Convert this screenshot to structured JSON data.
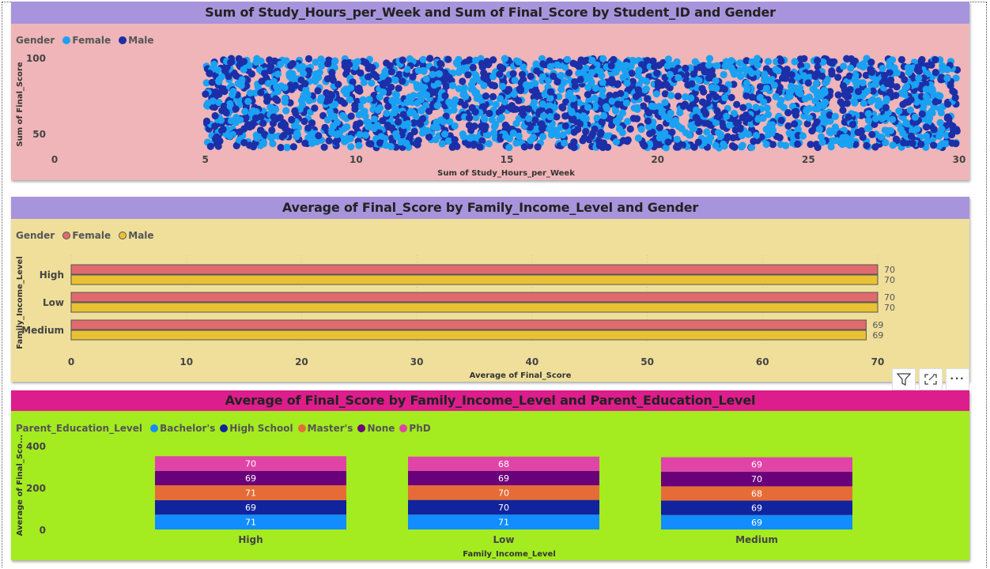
{
  "chart_data": [
    {
      "type": "scatter",
      "title": "Sum of Study_Hours_per_Week and Sum of Final_Score by Student_ID and Gender",
      "xlabel": "Sum of Study_Hours_per_Week",
      "ylabel": "Sum of Final_Score",
      "xlim": [
        0,
        30
      ],
      "y_ticks": [
        "50",
        "100"
      ],
      "x_ticks": [
        "0",
        "5",
        "10",
        "15",
        "20",
        "25",
        "30"
      ],
      "legend_title": "Gender",
      "legend_position": "top-left",
      "grid": false,
      "series": [
        {
          "name": "Female",
          "color": "#1aa1f2",
          "x_range": [
            5,
            30
          ],
          "y_range": [
            40,
            100
          ]
        },
        {
          "name": "Male",
          "color": "#1c2fa8",
          "x_range": [
            5,
            30
          ],
          "y_range": [
            40,
            100
          ]
        }
      ],
      "background": "#efb5b8",
      "title_bg": "#a894dc"
    },
    {
      "type": "bar",
      "orientation": "horizontal",
      "title": "Average of Final_Score by Family_Income_Level and Gender",
      "xlabel": "Average of Final_Score",
      "ylabel": "Family_Income_Level",
      "categories": [
        "High",
        "Low",
        "Medium"
      ],
      "xlim": [
        0,
        70
      ],
      "x_ticks": [
        "0",
        "10",
        "20",
        "30",
        "40",
        "50",
        "60",
        "70"
      ],
      "legend_title": "Gender",
      "legend_position": "top-left",
      "series": [
        {
          "name": "Female",
          "color": "#e06b6e",
          "values": [
            70,
            70,
            69
          ]
        },
        {
          "name": "Male",
          "color": "#e8c234",
          "values": [
            70,
            70,
            69
          ]
        }
      ],
      "data_labels": [
        [
          "70",
          "70"
        ],
        [
          "70",
          "70"
        ],
        [
          "69",
          "69"
        ]
      ],
      "background": "#efdf9b",
      "title_bg": "#a894dc"
    },
    {
      "type": "bar",
      "stacked": true,
      "title": "Average of Final_Score by Family_Income_Level and Parent_Education_Level",
      "xlabel": "Family_Income_Level",
      "ylabel": "Average of Final_Sco...",
      "categories": [
        "High",
        "Low",
        "Medium"
      ],
      "ylim": [
        0,
        400
      ],
      "y_ticks": [
        "0",
        "200",
        "400"
      ],
      "legend_title": "Parent_Education_Level",
      "legend_position": "top-left",
      "series": [
        {
          "name": "Bachelor's",
          "color": "#118dff",
          "values": [
            71,
            71,
            69
          ]
        },
        {
          "name": "High School",
          "color": "#12239e",
          "values": [
            69,
            70,
            69
          ]
        },
        {
          "name": "Master's",
          "color": "#e66c37",
          "values": [
            71,
            70,
            68
          ]
        },
        {
          "name": "None",
          "color": "#6b007b",
          "values": [
            69,
            69,
            70
          ]
        },
        {
          "name": "PhD",
          "color": "#e044a7",
          "values": [
            70,
            68,
            69
          ]
        }
      ],
      "background": "#a4eb20",
      "title_bg": "#dc1d8b"
    }
  ],
  "toolbar": {
    "filter_icon": "filter-icon",
    "focus_icon": "focus-mode-icon",
    "more_icon": "more-options-icon",
    "more_label": "···"
  }
}
